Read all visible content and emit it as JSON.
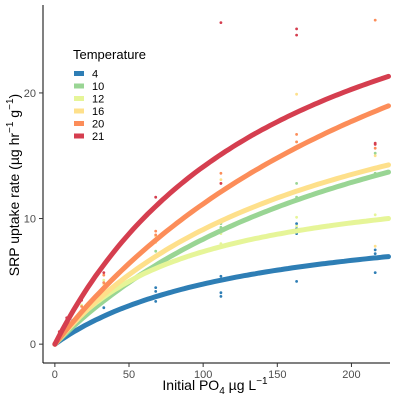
{
  "chart_data": {
    "type": "scatter",
    "xlabel": {
      "prefix": "Initial PO",
      "sub": "4",
      "mid": " µg L",
      "sup": "−1"
    },
    "ylabel": {
      "prefix": "SRP uptake rate (µg hr",
      "sup1": "−1",
      "mid": " g",
      "sup2": "−1",
      "suffix": ")"
    },
    "xlim": [
      -8,
      226
    ],
    "ylim": [
      -1.5,
      27
    ],
    "x_ticks": [
      0,
      50,
      100,
      150,
      200
    ],
    "y_ticks": [
      0,
      10,
      20
    ],
    "grid": false,
    "legend": {
      "title": "Temperature",
      "position": "top-left"
    },
    "fit": "saturating curve (Michaelis–Menten), x from 0 to 225",
    "series": [
      {
        "name": "4",
        "color": "#2E7EB5",
        "vmax": 11.0,
        "k": 130,
        "points": [
          [
            2,
            0.3
          ],
          [
            3,
            0.6
          ],
          [
            8,
            1.2
          ],
          [
            12,
            1.9
          ],
          [
            18,
            2.4
          ],
          [
            33,
            2.9
          ],
          [
            33,
            3.5
          ],
          [
            33,
            3.9
          ],
          [
            68,
            3.4
          ],
          [
            68,
            4.2
          ],
          [
            68,
            4.5
          ],
          [
            112,
            3.8
          ],
          [
            112,
            4.1
          ],
          [
            112,
            5.4
          ],
          [
            163,
            5.0
          ],
          [
            163,
            8.8
          ],
          [
            163,
            9.2
          ],
          [
            163,
            9.6
          ],
          [
            216,
            5.7
          ],
          [
            216,
            7.2
          ],
          [
            216,
            7.5
          ]
        ]
      },
      {
        "name": "10",
        "color": "#99D594",
        "vmax": 28.0,
        "k": 235,
        "points": [
          [
            3,
            0.7
          ],
          [
            8,
            1.4
          ],
          [
            18,
            2.3
          ],
          [
            33,
            4.2
          ],
          [
            33,
            4.9
          ],
          [
            68,
            7.4
          ],
          [
            68,
            8.2
          ],
          [
            112,
            9.3
          ],
          [
            112,
            9.6
          ],
          [
            163,
            11.7
          ],
          [
            163,
            12.8
          ],
          [
            216,
            13.6
          ],
          [
            216,
            15.2
          ]
        ]
      },
      {
        "name": "12",
        "color": "#E6F598",
        "vmax": 14.0,
        "k": 90,
        "points": [
          [
            3,
            0.9
          ],
          [
            8,
            1.6
          ],
          [
            18,
            3.1
          ],
          [
            33,
            5.1
          ],
          [
            33,
            4.6
          ],
          [
            68,
            6.2
          ],
          [
            68,
            7.0
          ],
          [
            112,
            8.0
          ],
          [
            112,
            8.8
          ],
          [
            163,
            9.4
          ],
          [
            163,
            10.1
          ],
          [
            216,
            9.8
          ],
          [
            216,
            10.3
          ]
        ]
      },
      {
        "name": "16",
        "color": "#FEE08B",
        "vmax": 26.0,
        "k": 185,
        "points": [
          [
            3,
            0.8
          ],
          [
            8,
            1.8
          ],
          [
            18,
            2.6
          ],
          [
            33,
            4.3
          ],
          [
            33,
            4.8
          ],
          [
            68,
            8.1
          ],
          [
            68,
            8.6
          ],
          [
            112,
            12.2
          ],
          [
            112,
            13.1
          ],
          [
            163,
            19.9
          ],
          [
            163,
            16.1
          ],
          [
            216,
            15.0
          ],
          [
            216,
            7.8
          ]
        ]
      },
      {
        "name": "20",
        "color": "#FC8D59",
        "vmax": 43.0,
        "k": 285,
        "points": [
          [
            3,
            0.9
          ],
          [
            8,
            1.8
          ],
          [
            18,
            3.0
          ],
          [
            33,
            4.9
          ],
          [
            33,
            5.5
          ],
          [
            68,
            8.7
          ],
          [
            68,
            9.0
          ],
          [
            112,
            12.8
          ],
          [
            112,
            13.6
          ],
          [
            163,
            16.1
          ],
          [
            163,
            16.7
          ],
          [
            216,
            25.8
          ],
          [
            216,
            15.6
          ]
        ]
      },
      {
        "name": "21",
        "color": "#D53E4F",
        "vmax": 36.0,
        "k": 155,
        "points": [
          [
            3,
            1.0
          ],
          [
            8,
            2.1
          ],
          [
            18,
            3.5
          ],
          [
            33,
            5.7
          ],
          [
            33,
            6.2
          ],
          [
            68,
            11.0
          ],
          [
            68,
            11.7
          ],
          [
            112,
            12.8
          ],
          [
            112,
            25.6
          ],
          [
            163,
            24.6
          ],
          [
            163,
            25.1
          ],
          [
            216,
            15.9
          ],
          [
            216,
            16.0
          ]
        ]
      }
    ]
  }
}
